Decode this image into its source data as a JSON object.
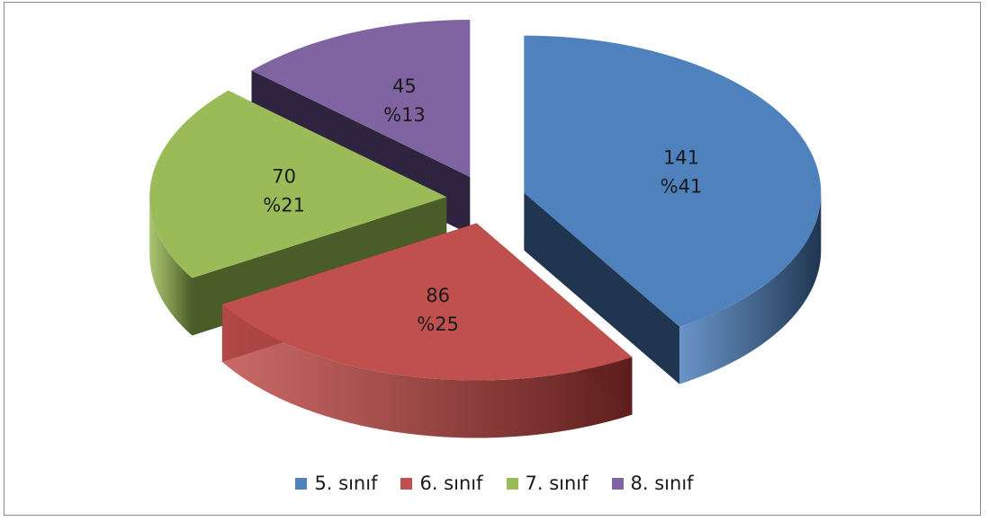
{
  "chart_data": {
    "type": "pie",
    "variant": "3d-exploded",
    "legend_position": "bottom",
    "slices": [
      {
        "name": "5. sınıf",
        "value": 141,
        "percent_label": "%41",
        "value_label": "141",
        "color": "#4F81BD",
        "side_color": "#1F3550"
      },
      {
        "name": "6. sınıf",
        "value": 86,
        "percent_label": "%25",
        "value_label": "86",
        "color": "#C0504D",
        "side_color": "#5E1E1C"
      },
      {
        "name": "7. sınıf",
        "value": 70,
        "percent_label": "%21",
        "value_label": "70",
        "color": "#9BBB59",
        "side_color": "#4A5C27"
      },
      {
        "name": "8. sınıf",
        "value": 45,
        "percent_label": "%13",
        "value_label": "45",
        "color": "#8064A2",
        "side_color": "#2E2440"
      }
    ]
  }
}
